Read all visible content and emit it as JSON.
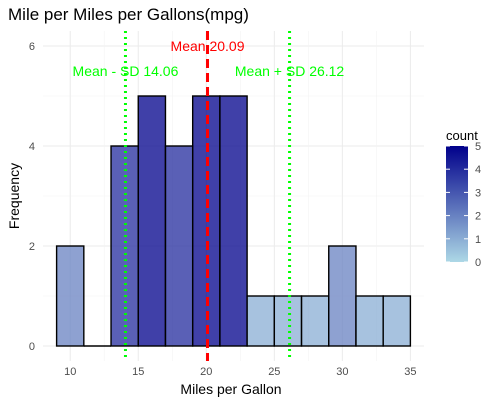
{
  "chart_data": {
    "type": "bar",
    "title": "Mile per Miles per Gallons(mpg)",
    "xlabel": "Miles per Gallon",
    "ylabel": "Frequency",
    "xlim": [
      8.0,
      36.0
    ],
    "ylim": [
      -0.3,
      6.3
    ],
    "xticks": [
      10,
      15,
      20,
      25,
      30,
      35
    ],
    "yticks": [
      0,
      2,
      4,
      6
    ],
    "grid": true,
    "bin_width": 2,
    "bins": [
      {
        "x0": 9,
        "x1": 11,
        "count": 2
      },
      {
        "x0": 11,
        "x1": 13,
        "count": 0
      },
      {
        "x0": 13,
        "x1": 15,
        "count": 4
      },
      {
        "x0": 15,
        "x1": 17,
        "count": 5
      },
      {
        "x0": 17,
        "x1": 19,
        "count": 4
      },
      {
        "x0": 19,
        "x1": 21,
        "count": 5
      },
      {
        "x0": 21,
        "x1": 23,
        "count": 5
      },
      {
        "x0": 23,
        "x1": 25,
        "count": 1
      },
      {
        "x0": 25,
        "x1": 27,
        "count": 1
      },
      {
        "x0": 27,
        "x1": 29,
        "count": 1
      },
      {
        "x0": 29,
        "x1": 31,
        "count": 2
      },
      {
        "x0": 31,
        "x1": 33,
        "count": 1
      },
      {
        "x0": 33,
        "x1": 35,
        "count": 1
      }
    ],
    "reference_lines": [
      {
        "value": 20.09,
        "label": "Mean 20.09",
        "color": "#ff0000",
        "style": "dashed"
      },
      {
        "value": 14.06,
        "label": "Mean - SD 14.06",
        "color": "#00ff00",
        "style": "dotted"
      },
      {
        "value": 26.12,
        "label": "Mean + SD 26.12",
        "color": "#00ff00",
        "style": "dotted"
      }
    ],
    "legend": {
      "title": "count",
      "position": "right",
      "ticks": [
        0,
        1,
        2,
        3,
        4,
        5
      ],
      "low_color": "#add8e6",
      "high_color": "#00008b"
    }
  }
}
